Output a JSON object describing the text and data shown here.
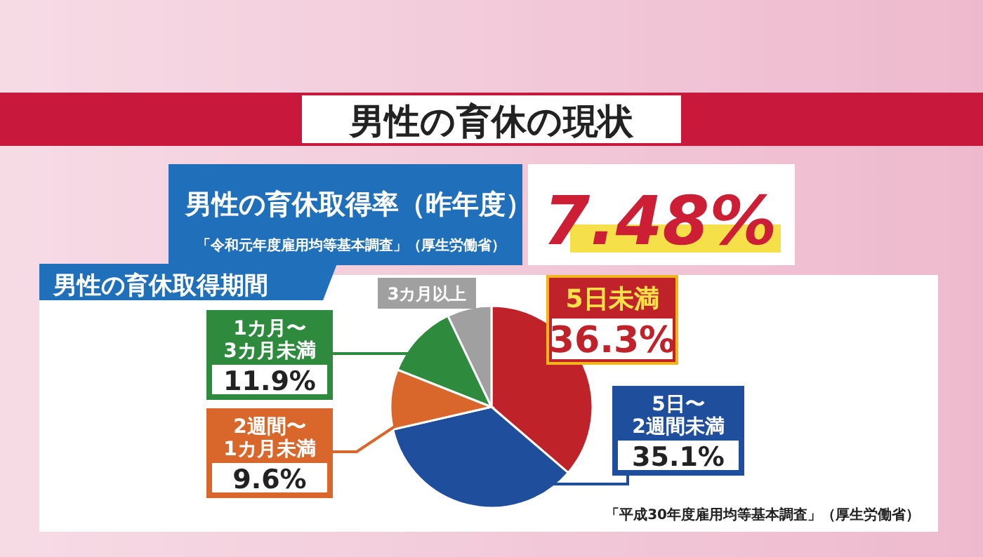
{
  "chart_data": [
    {
      "type": "other",
      "title": "男性の育休の現状",
      "subtitle": "男性の育休取得率（昨年度）",
      "annotations": [
        "7.48%",
        "「令和元年度雇用均等基本調査」（厚生労働省）"
      ]
    },
    {
      "type": "pie",
      "title": "男性の育休取得期間",
      "categories": [
        "5日未満",
        "5日〜\n2週間未満",
        "2週間〜\n1カ月未満",
        "1カ月〜\n3カ月未満",
        "3カ月以上"
      ],
      "values": [
        36.3,
        35.1,
        9.6,
        11.9,
        7.1
      ],
      "colors": [
        "#c0222a",
        "#1f4e9c",
        "#d9662a",
        "#2e8b3e",
        "#a0a0a0"
      ],
      "value_labels": [
        "36.3%",
        "35.1%",
        "9.6%",
        "11.9%",
        null
      ],
      "annotations": [
        "「平成30年度雇用均等基本調査」（厚生労働省）"
      ]
    }
  ]
}
